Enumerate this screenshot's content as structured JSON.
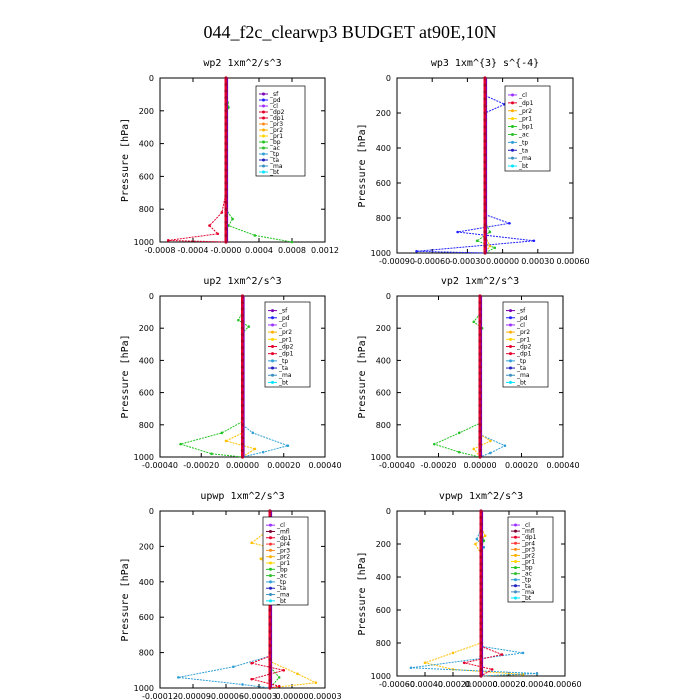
{
  "title": "044_f2c_clearwp3  BUDGET at90E,10N",
  "chart_data": [
    {
      "type": "line",
      "title": "wp2  1xm^2/s^3",
      "ylabel": "Pressure [hPa]",
      "ylim": [
        1000,
        0
      ],
      "yticks": [
        "0",
        "200",
        "400",
        "600",
        "800",
        "1000"
      ],
      "xlim": [
        -0.0008,
        0.0012
      ],
      "xticks": [
        "-0.0008",
        "-0.0004",
        "-0.0000",
        "0.0004",
        "0.0008",
        "0.0012"
      ],
      "legend": [
        "_sf",
        "_pd",
        "_cl",
        "_dp2",
        "_dp1",
        "_pr3",
        "_pr2",
        "_pr1",
        "_bp",
        "_ac",
        "_tp",
        "_ta",
        "_ma",
        "_bt"
      ],
      "series": [
        {
          "name": "_pd",
          "color": "#1f1fff",
          "points": [
            [
              0,
              0
            ],
            [
              0,
              100
            ],
            [
              0,
              200
            ],
            [
              0,
              300
            ],
            [
              0,
              400
            ],
            [
              0,
              500
            ],
            [
              0,
              600
            ],
            [
              0,
              700
            ],
            [
              0,
              800
            ],
            [
              0,
              900
            ],
            [
              0,
              1000
            ]
          ]
        },
        {
          "name": "_dp1",
          "color": "#e4002b",
          "points": [
            [
              0,
              0
            ],
            [
              0,
              700
            ],
            [
              -5e-05,
              820
            ],
            [
              -0.0002,
              900
            ],
            [
              -0.0001,
              950
            ],
            [
              -0.0007,
              990
            ],
            [
              0,
              1000
            ]
          ]
        },
        {
          "name": "_bp",
          "color": "#22c322",
          "points": [
            [
              0,
              0
            ],
            [
              0,
              120
            ],
            [
              2e-05,
              150
            ],
            [
              3e-05,
              180
            ],
            [
              0,
              220
            ],
            [
              0,
              800
            ],
            [
              8e-05,
              860
            ],
            [
              3e-05,
              900
            ],
            [
              0.00035,
              960
            ],
            [
              0.0008,
              1000
            ]
          ]
        },
        {
          "name": "_bt",
          "color": "#00e5ff",
          "points": [
            [
              0,
              0
            ],
            [
              0,
              1000
            ]
          ]
        },
        {
          "name": "_cl",
          "color": "#7a00b0",
          "points": [
            [
              0,
              0
            ],
            [
              0,
              1000
            ]
          ]
        }
      ]
    },
    {
      "type": "line",
      "title": "wp3  1xm^{3} s^{-4}",
      "ylabel": "Pressure [hPa]",
      "ylim": [
        1000,
        0
      ],
      "yticks": [
        "0",
        "200",
        "400",
        "600",
        "800",
        "1000"
      ],
      "xlim": [
        -0.0009,
        0.0009
      ],
      "xticks": [
        "-0.00090",
        "-0.00060",
        "-0.00030",
        "0.00000",
        "0.00030",
        "0.00060"
      ],
      "legend": [
        "_cl",
        "_dp1",
        "_pr2",
        "_pr1",
        "_bp1",
        "_ac",
        "_tp",
        "_ta",
        "_ma",
        "_bt"
      ],
      "series": [
        {
          "name": "_tp",
          "color": "#1f1fff",
          "points": [
            [
              0,
              0
            ],
            [
              0,
              100
            ],
            [
              0.0002,
              150
            ],
            [
              0,
              200
            ],
            [
              0,
              780
            ],
            [
              0.00025,
              830
            ],
            [
              -0.00028,
              880
            ],
            [
              0.0005,
              930
            ],
            [
              -0.0007,
              990
            ],
            [
              0,
              1000
            ]
          ]
        },
        {
          "name": "_bp1",
          "color": "#22c322",
          "points": [
            [
              0,
              0
            ],
            [
              0,
              820
            ],
            [
              5e-05,
              880
            ],
            [
              -8e-05,
              930
            ],
            [
              0.0001,
              970
            ],
            [
              0,
              1000
            ]
          ]
        },
        {
          "name": "_pr1",
          "color": "#ffc000",
          "points": [
            [
              0,
              0
            ],
            [
              0,
              900
            ],
            [
              5e-05,
              960
            ],
            [
              0,
              1000
            ]
          ]
        },
        {
          "name": "_dp1",
          "color": "#e4002b",
          "points": [
            [
              0,
              0
            ],
            [
              0,
              1000
            ]
          ]
        }
      ]
    },
    {
      "type": "line",
      "title": "up2  1xm^2/s^3",
      "ylabel": "Pressure [hPa]",
      "ylim": [
        1000,
        0
      ],
      "yticks": [
        "0",
        "200",
        "400",
        "600",
        "800",
        "1000"
      ],
      "xlim": [
        -0.0004,
        0.0004
      ],
      "xticks": [
        "-0.00040",
        "-0.00020",
        "0.00000",
        "0.00020",
        "0.00040"
      ],
      "legend": [
        "_sf",
        "_pd",
        "_cl",
        "_pr2",
        "_pr1",
        "_dp2",
        "_dp1",
        "_tp",
        "_ta",
        "_ma",
        "_bt"
      ],
      "series": [
        {
          "name": "_dp1",
          "color": "#22c322",
          "points": [
            [
              0,
              0
            ],
            [
              0,
              100
            ],
            [
              -2e-05,
              150
            ],
            [
              3e-05,
              190
            ],
            [
              0,
              230
            ],
            [
              0,
              780
            ],
            [
              -0.0001,
              850
            ],
            [
              -0.0003,
              920
            ],
            [
              -0.00015,
              980
            ],
            [
              0,
              1000
            ]
          ]
        },
        {
          "name": "_tp",
          "color": "#2f9fd6",
          "points": [
            [
              0,
              0
            ],
            [
              0,
              800
            ],
            [
              5e-05,
              850
            ],
            [
              0.00022,
              930
            ],
            [
              0.0001,
              970
            ],
            [
              0,
              1000
            ]
          ]
        },
        {
          "name": "_pr1",
          "color": "#ffc000",
          "points": [
            [
              0,
              0
            ],
            [
              0,
              850
            ],
            [
              -8e-05,
              900
            ],
            [
              6e-05,
              950
            ],
            [
              0,
              1000
            ]
          ]
        },
        {
          "name": "_dp2",
          "color": "#e4002b",
          "points": [
            [
              0,
              0
            ],
            [
              0,
              1000
            ]
          ]
        }
      ]
    },
    {
      "type": "line",
      "title": "vp2  1xm^2/s^3",
      "ylabel": "Pressure [hPa]",
      "ylim": [
        1000,
        0
      ],
      "yticks": [
        "0",
        "200",
        "400",
        "600",
        "800",
        "1000"
      ],
      "xlim": [
        -0.0004,
        0.0004
      ],
      "xticks": [
        "-0.00040",
        "-0.00020",
        "0.00000",
        "0.00020",
        "0.00040"
      ],
      "legend": [
        "_sf",
        "_pd",
        "_cl",
        "_pr2",
        "_pr1",
        "_dp2",
        "_dp1",
        "_tp",
        "_ta",
        "_ma",
        "_bt"
      ],
      "series": [
        {
          "name": "_dp1",
          "color": "#22c322",
          "points": [
            [
              0,
              0
            ],
            [
              0,
              110
            ],
            [
              -3e-05,
              160
            ],
            [
              1e-05,
              200
            ],
            [
              0,
              230
            ],
            [
              0,
              790
            ],
            [
              -0.0001,
              850
            ],
            [
              -0.00022,
              920
            ],
            [
              -0.0001,
              970
            ],
            [
              0,
              1000
            ]
          ]
        },
        {
          "name": "_tp",
          "color": "#2f9fd6",
          "points": [
            [
              0,
              0
            ],
            [
              0,
              860
            ],
            [
              0.00012,
              930
            ],
            [
              5e-05,
              975
            ],
            [
              0,
              1000
            ]
          ]
        },
        {
          "name": "_pr1",
          "color": "#ffc000",
          "points": [
            [
              0,
              0
            ],
            [
              0,
              860
            ],
            [
              5e-05,
              900
            ],
            [
              -3e-05,
              950
            ],
            [
              0,
              1000
            ]
          ]
        },
        {
          "name": "_dp2",
          "color": "#e4002b",
          "points": [
            [
              0,
              0
            ],
            [
              0,
              1000
            ]
          ]
        }
      ]
    },
    {
      "type": "line",
      "title": "upwp  1xm^2/s^3",
      "ylabel": "Pressure [hPa]",
      "ylim": [
        1000,
        0
      ],
      "yticks": [
        "0",
        "200",
        "400",
        "600",
        "800",
        "1000"
      ],
      "xlim": [
        -0.00012,
        6e-05
      ],
      "xticks": [
        "-0.00012",
        "-0.00009",
        "-0.00006",
        "-0.00003",
        "0.00000",
        "0.00003"
      ],
      "legend": [
        "_cl",
        "_mfl",
        "_dp1",
        "_pr4",
        "_pr3",
        "_pr2",
        "_pr1",
        "_bp",
        "_ac",
        "_tp",
        "_ta",
        "_ma",
        "_bt"
      ],
      "series": [
        {
          "name": "_pr1",
          "color": "#ffc000",
          "points": [
            [
              0,
              0
            ],
            [
              0,
              100
            ],
            [
              -2e-05,
              180
            ],
            [
              1e-05,
              220
            ],
            [
              -1e-05,
              270
            ],
            [
              0,
              320
            ],
            [
              0,
              850
            ],
            [
              3e-05,
              920
            ],
            [
              5e-05,
              970
            ],
            [
              0,
              1000
            ]
          ]
        },
        {
          "name": "_bp",
          "color": "#22c322",
          "points": [
            [
              0,
              0
            ],
            [
              0,
              120
            ],
            [
              1.2e-05,
              190
            ],
            [
              0,
              260
            ],
            [
              0,
              880
            ],
            [
              1e-05,
              940
            ],
            [
              0,
              1000
            ]
          ]
        },
        {
          "name": "_tp",
          "color": "#2f9fd6",
          "points": [
            [
              0,
              0
            ],
            [
              0,
              820
            ],
            [
              -4e-05,
              880
            ],
            [
              -0.0001,
              940
            ],
            [
              -3e-05,
              980
            ],
            [
              0,
              1000
            ]
          ]
        },
        {
          "name": "_dp1",
          "color": "#e4002b",
          "points": [
            [
              0,
              0
            ],
            [
              0,
              820
            ],
            [
              -2e-05,
              860
            ],
            [
              1.5e-05,
              900
            ],
            [
              -2e-05,
              950
            ],
            [
              1e-05,
              990
            ],
            [
              0,
              1000
            ]
          ]
        },
        {
          "name": "_mfl",
          "color": "#7a0030",
          "points": [
            [
              0,
              0
            ],
            [
              0,
              1000
            ]
          ]
        }
      ]
    },
    {
      "type": "line",
      "title": "vpwp  1xm^2/s^3",
      "ylabel": "Pressure [hPa]",
      "ylim": [
        1000,
        0
      ],
      "yticks": [
        "0",
        "200",
        "400",
        "600",
        "800",
        "1000"
      ],
      "xlim": [
        -0.0006,
        0.0006
      ],
      "xticks": [
        "-0.00060",
        "-0.00040",
        "-0.00020",
        "0.00000",
        "0.00020",
        "0.00040",
        "0.00060"
      ],
      "legend": [
        "_cl",
        "_mfl",
        "_dp1",
        "_pr4",
        "_pr3",
        "_pr2",
        "_pr1",
        "_bp",
        "_ac",
        "_tp",
        "_ta",
        "_ma",
        "_bt"
      ],
      "series": [
        {
          "name": "_pr1",
          "color": "#ffc000",
          "points": [
            [
              0,
              0
            ],
            [
              0,
              100
            ],
            [
              3e-05,
              150
            ],
            [
              -4e-05,
              200
            ],
            [
              0,
              260
            ],
            [
              0,
              800
            ],
            [
              -0.0002,
              860
            ],
            [
              -0.0004,
              920
            ],
            [
              -0.0002,
              960
            ],
            [
              0.0003,
              990
            ],
            [
              0,
              1000
            ]
          ]
        },
        {
          "name": "_tp",
          "color": "#2f9fd6",
          "points": [
            [
              0,
              0
            ],
            [
              0,
              110
            ],
            [
              -3e-05,
              170
            ],
            [
              2e-05,
              220
            ],
            [
              0,
              250
            ],
            [
              0,
              820
            ],
            [
              0.0003,
              860
            ],
            [
              -0.0005,
              950
            ],
            [
              0.0004,
              985
            ],
            [
              0,
              1000
            ]
          ]
        },
        {
          "name": "_dp1",
          "color": "#e4002b",
          "points": [
            [
              0,
              0
            ],
            [
              0,
              820
            ],
            [
              0.00015,
              870
            ],
            [
              -0.00012,
              920
            ],
            [
              8e-05,
              960
            ],
            [
              0,
              1000
            ]
          ]
        },
        {
          "name": "_bp",
          "color": "#22c322",
          "points": [
            [
              0,
              0
            ],
            [
              0,
              130
            ],
            [
              2e-05,
              180
            ],
            [
              0,
              230
            ],
            [
              0,
              1000
            ]
          ]
        },
        {
          "name": "_mfl",
          "color": "#7a0030",
          "points": [
            [
              0,
              0
            ],
            [
              0,
              1000
            ]
          ]
        }
      ]
    }
  ],
  "legend_colors": {
    "_sf": "#7a00b0",
    "_pd": "#1f1fff",
    "_cl": "#9b30ff",
    "_mfl": "#7a0030",
    "_dp2": "#e4002b",
    "_dp1": "#e4002b",
    "_pr4": "#ff3a3a",
    "_pr3": "#ff8c1a",
    "_pr2": "#ffb000",
    "_pr1": "#ffd400",
    "_bp": "#22c322",
    "_bp1": "#22c322",
    "_ac": "#2fbf2f",
    "_tp": "#2f9fd6",
    "_ta": "#1f1fbf",
    "_ma": "#3a8fbf",
    "_bt": "#00e5ff"
  }
}
